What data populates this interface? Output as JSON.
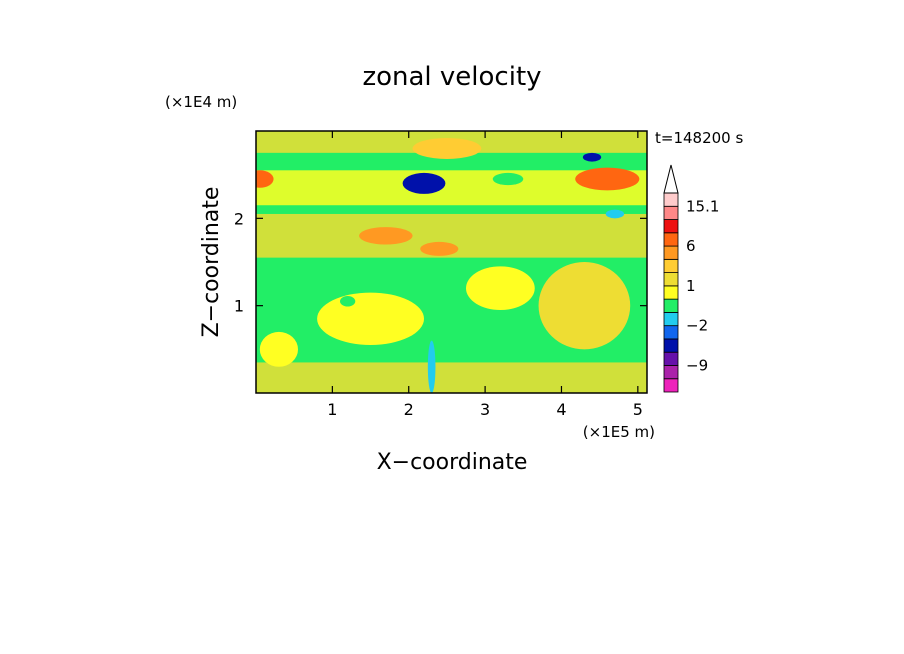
{
  "chart_data": {
    "type": "heatmap",
    "title": "zonal velocity",
    "xlabel": "X−coordinate",
    "ylabel": "Z−coordinate",
    "x_unit": "(×1E5 m)",
    "y_unit": "(×1E4 m)",
    "time_label": "t=148200 s",
    "xlim": [
      0,
      5.12
    ],
    "ylim": [
      0,
      3.0
    ],
    "x_ticks": [
      1,
      2,
      3,
      4,
      5
    ],
    "x_tick_labels": [
      "1",
      "2",
      "3",
      "4",
      "5"
    ],
    "y_ticks": [
      1,
      2
    ],
    "y_tick_labels": [
      "1",
      "2"
    ],
    "colorbar": {
      "levels": [
        -15.1,
        -12,
        -9,
        -6,
        -4,
        -2,
        -1,
        0,
        1,
        2,
        4,
        6,
        9,
        12,
        15.1
      ],
      "tick_labels": [
        {
          "value": 15.1,
          "label": "15.1"
        },
        {
          "value": 6,
          "label": "6"
        },
        {
          "value": 1,
          "label": "1"
        },
        {
          "value": -2,
          "label": "−2"
        },
        {
          "value": -9,
          "label": "−9"
        }
      ],
      "colors": [
        "#ee22bb",
        "#aa22aa",
        "#6611aa",
        "#0011aa",
        "#1166ee",
        "#22ccee",
        "#22ee66",
        "#ffff22",
        "#eedd33",
        "#ffcc33",
        "#ff9922",
        "#ff6611",
        "#ee1111",
        "#ff8888",
        "#ffcccc"
      ],
      "extend": "max"
    },
    "features": [
      {
        "x": 0.05,
        "z": 2.45,
        "rx": 0.18,
        "rz": 0.1,
        "value": 6
      },
      {
        "x": 2.2,
        "z": 2.4,
        "rx": 0.28,
        "rz": 0.12,
        "value": -6
      },
      {
        "x": 3.3,
        "z": 2.45,
        "rx": 0.2,
        "rz": 0.07,
        "value": -1
      },
      {
        "x": 4.6,
        "z": 2.45,
        "rx": 0.42,
        "rz": 0.13,
        "value": 6
      },
      {
        "x": 4.4,
        "z": 2.7,
        "rx": 0.12,
        "rz": 0.05,
        "value": -6
      },
      {
        "x": 2.5,
        "z": 2.8,
        "rx": 0.45,
        "rz": 0.12,
        "value": 2
      },
      {
        "x": 1.7,
        "z": 1.8,
        "rx": 0.35,
        "rz": 0.1,
        "value": 4
      },
      {
        "x": 2.4,
        "z": 1.65,
        "rx": 0.25,
        "rz": 0.08,
        "value": 4
      },
      {
        "x": 1.5,
        "z": 0.85,
        "rx": 0.7,
        "rz": 0.3,
        "value": 0.5
      },
      {
        "x": 0.3,
        "z": 0.5,
        "rx": 0.25,
        "rz": 0.2,
        "value": 0.5
      },
      {
        "x": 2.3,
        "z": 0.3,
        "rx": 0.05,
        "rz": 0.3,
        "value": -2
      },
      {
        "x": 4.3,
        "z": 1.0,
        "rx": 0.6,
        "rz": 0.5,
        "value": 1.5
      },
      {
        "x": 3.2,
        "z": 1.2,
        "rx": 0.45,
        "rz": 0.25,
        "value": 0.5
      },
      {
        "x": 1.2,
        "z": 1.05,
        "rx": 0.1,
        "rz": 0.06,
        "value": -1
      },
      {
        "x": 4.7,
        "z": 2.05,
        "rx": 0.12,
        "rz": 0.05,
        "value": -2
      }
    ]
  }
}
